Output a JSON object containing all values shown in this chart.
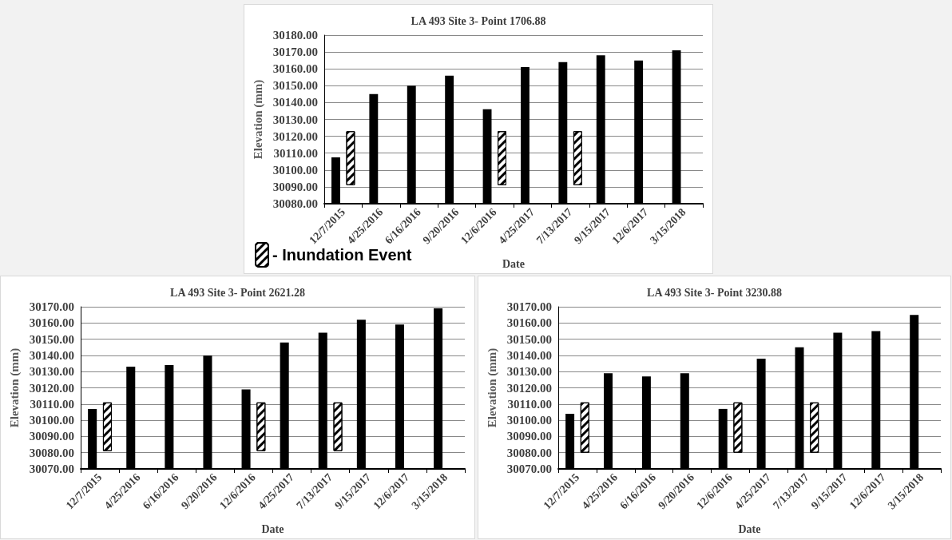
{
  "chart_data": [
    {
      "type": "bar",
      "title": "LA 493 Site 3- Point 1706.88",
      "xlabel": "Date",
      "ylabel": "Elevation (mm)",
      "categories": [
        "12/7/2015",
        "4/25/2016",
        "6/16/2016",
        "9/20/2016",
        "12/6/2016",
        "4/25/2017",
        "7/13/2017",
        "9/15/2017",
        "12/6/2017",
        "3/15/2018"
      ],
      "series": [
        {
          "color": "#000000",
          "values": [
            30107.5,
            30145,
            30150,
            30156,
            30136,
            30161,
            30164,
            30168,
            30165,
            30171
          ]
        },
        {
          "name": "- Inundation Event",
          "color": "#ffffff",
          "base": [
            30091,
            null,
            null,
            null,
            30091,
            null,
            30091,
            null,
            null,
            null
          ],
          "values": [
            32,
            null,
            null,
            null,
            32,
            null,
            32,
            null,
            null,
            null
          ]
        }
      ],
      "ylim": [
        30080,
        30180
      ],
      "yticks": [
        {
          "value": 30080,
          "label": "30080.00"
        },
        {
          "value": 30090,
          "label": "30090.00"
        },
        {
          "value": 30100,
          "label": "30100.00"
        },
        {
          "value": 30110,
          "label": "30110.00"
        },
        {
          "value": 30120,
          "label": "30120.00"
        },
        {
          "value": 30130,
          "label": "30130.00"
        },
        {
          "value": 30140,
          "label": "30140.00"
        },
        {
          "value": 30150,
          "label": "30150.00"
        },
        {
          "value": 30160,
          "label": "30160.00"
        },
        {
          "value": 30170,
          "label": "30170.00"
        },
        {
          "value": 30180,
          "label": "30180.00"
        }
      ],
      "grid": "y",
      "legend": "bottom left"
    },
    {
      "type": "bar",
      "title": "LA 493 Site 3- Point 2621.28",
      "xlabel": "Date",
      "ylabel": "Elevation (mm)",
      "categories": [
        "12/7/2015",
        "4/25/2016",
        "6/16/2016",
        "9/20/2016",
        "12/6/2016",
        "4/25/2017",
        "7/13/2017",
        "9/15/2017",
        "12/6/2017",
        "3/15/2018"
      ],
      "series": [
        {
          "color": "#000000",
          "values": [
            30107,
            30133,
            30134,
            30140,
            30119,
            30148,
            30154,
            30162,
            30159,
            30169
          ]
        },
        {
          "color": "#ffffff",
          "base": [
            30081,
            null,
            null,
            null,
            30081,
            null,
            30081,
            null,
            null,
            null
          ],
          "values": [
            30,
            null,
            null,
            null,
            30,
            null,
            30,
            null,
            null,
            null
          ]
        }
      ],
      "ylim": [
        30070,
        30170
      ],
      "yticks": [
        {
          "value": 30070,
          "label": "30070.00"
        },
        {
          "value": 30080,
          "label": "30080.00"
        },
        {
          "value": 30090,
          "label": "30090.00"
        },
        {
          "value": 30100,
          "label": "30100.00"
        },
        {
          "value": 30110,
          "label": "30110.00"
        },
        {
          "value": 30120,
          "label": "30120.00"
        },
        {
          "value": 30130,
          "label": "30130.00"
        },
        {
          "value": 30140,
          "label": "30140.00"
        },
        {
          "value": 30150,
          "label": "30150.00"
        },
        {
          "value": 30160,
          "label": "30160.00"
        },
        {
          "value": 30170,
          "label": "30170.00"
        }
      ],
      "grid": "y"
    },
    {
      "type": "bar",
      "title": "LA 493 Site 3- Point 3230.88",
      "xlabel": "Date",
      "ylabel": "Elevation (mm)",
      "categories": [
        "12/7/2015",
        "4/25/2016",
        "6/16/2016",
        "9/20/2016",
        "12/6/2016",
        "4/25/2017",
        "7/13/2017",
        "9/15/2017",
        "12/6/2017",
        "3/15/2018"
      ],
      "series": [
        {
          "color": "#000000",
          "values": [
            30104,
            30129,
            30127,
            30129,
            30107,
            30138,
            30145,
            30154,
            30155,
            30165
          ]
        },
        {
          "color": "#ffffff",
          "base": [
            30080,
            null,
            null,
            null,
            30080,
            null,
            30080,
            null,
            null,
            null
          ],
          "values": [
            31,
            null,
            null,
            null,
            31,
            null,
            31,
            null,
            null,
            null
          ]
        }
      ],
      "ylim": [
        30070,
        30170
      ],
      "yticks": [
        {
          "value": 30070,
          "label": "30070.00"
        },
        {
          "value": 30080,
          "label": "30080.00"
        },
        {
          "value": 30090,
          "label": "30090.00"
        },
        {
          "value": 30100,
          "label": "30100.00"
        },
        {
          "value": 30110,
          "label": "30110.00"
        },
        {
          "value": 30120,
          "label": "30120.00"
        },
        {
          "value": 30130,
          "label": "30130.00"
        },
        {
          "value": 30140,
          "label": "30140.00"
        },
        {
          "value": 30150,
          "label": "30150.00"
        },
        {
          "value": 30160,
          "label": "30160.00"
        },
        {
          "value": 30170,
          "label": "30170.00"
        }
      ],
      "grid": "y"
    }
  ]
}
